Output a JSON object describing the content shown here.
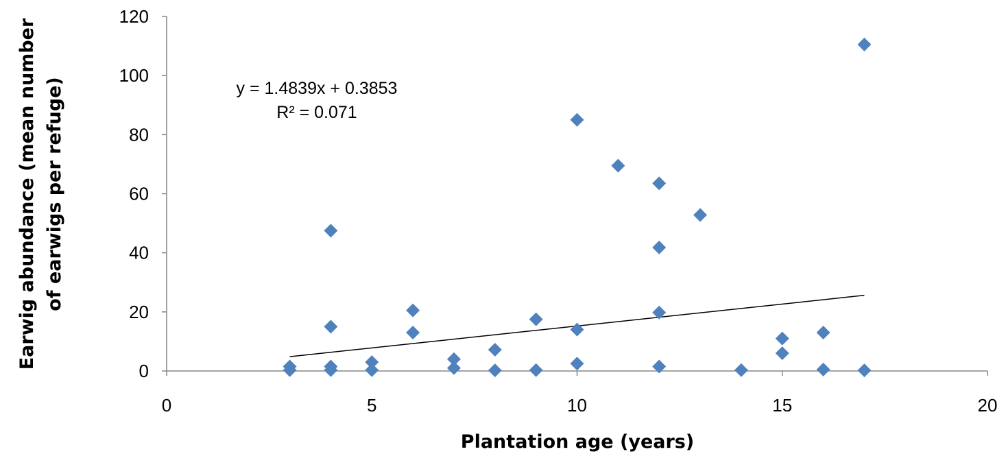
{
  "chart_data": {
    "type": "scatter",
    "title": "",
    "xlabel": "Plantation age (years)",
    "ylabel_lines": [
      "Earwig abundance (mean number",
      "of earwigs per refuge)"
    ],
    "xlim": [
      0,
      20
    ],
    "ylim": [
      0,
      120
    ],
    "x_ticks": [
      "0",
      "5",
      "10",
      "15",
      "20"
    ],
    "y_ticks": [
      "0",
      "20",
      "40",
      "60",
      "80",
      "100",
      "120"
    ],
    "grid": false,
    "legend": "none",
    "marker": "diamond",
    "marker_color": "#4f81bd",
    "trendline": {
      "type": "linear",
      "slope": 1.4839,
      "intercept": 0.3853,
      "x_range": [
        3,
        17
      ],
      "equation_label": "y = 1.4839x + 0.3853",
      "r2_label": "R² = 0.071",
      "color": "#000000"
    },
    "points": [
      {
        "x": 3,
        "y": 1.5
      },
      {
        "x": 3,
        "y": 0.3
      },
      {
        "x": 4,
        "y": 47.5
      },
      {
        "x": 4,
        "y": 15
      },
      {
        "x": 4,
        "y": 1.5
      },
      {
        "x": 4,
        "y": 0.3
      },
      {
        "x": 5,
        "y": 3
      },
      {
        "x": 5,
        "y": 0.3
      },
      {
        "x": 6,
        "y": 20.5
      },
      {
        "x": 6,
        "y": 13
      },
      {
        "x": 7,
        "y": 4
      },
      {
        "x": 7,
        "y": 1
      },
      {
        "x": 8,
        "y": 7.2
      },
      {
        "x": 8,
        "y": 0.2
      },
      {
        "x": 9,
        "y": 17.5
      },
      {
        "x": 9,
        "y": 0.3
      },
      {
        "x": 10,
        "y": 85
      },
      {
        "x": 10,
        "y": 14
      },
      {
        "x": 10,
        "y": 2.5
      },
      {
        "x": 11,
        "y": 69.5
      },
      {
        "x": 12,
        "y": 63.5
      },
      {
        "x": 12,
        "y": 41.8
      },
      {
        "x": 12,
        "y": 19.8
      },
      {
        "x": 12,
        "y": 1.5
      },
      {
        "x": 13,
        "y": 52.8
      },
      {
        "x": 14,
        "y": 0.3
      },
      {
        "x": 15,
        "y": 11
      },
      {
        "x": 15,
        "y": 6
      },
      {
        "x": 16,
        "y": 13
      },
      {
        "x": 16,
        "y": 0.5
      },
      {
        "x": 17,
        "y": 110.5
      },
      {
        "x": 17,
        "y": 0.2
      }
    ]
  }
}
